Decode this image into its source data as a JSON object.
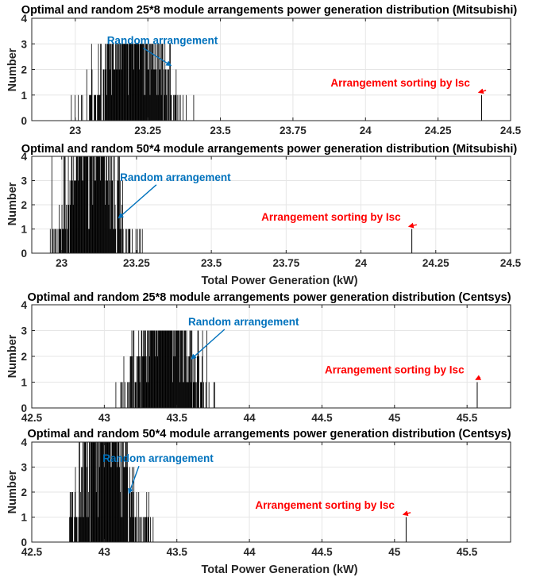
{
  "colors": {
    "bars": "#000000",
    "grid": "#e6e6e6",
    "axes": "#262626",
    "random_annotation": "#0072BD",
    "sorted_annotation": "#FF0000"
  },
  "chart_data": [
    {
      "type": "bar",
      "title": "Optimal and random 25*8 module arrangements power generation distribution (Mitsubishi)",
      "xlabel": "",
      "ylabel": "Number",
      "xlim": [
        22.85,
        24.5
      ],
      "ylim": [
        0,
        4
      ],
      "xticks": [
        23,
        23.25,
        23.5,
        23.75,
        24,
        24.25,
        24.5
      ],
      "xtick_labels": [
        "23",
        "23.25",
        "23.5",
        "23.75",
        "24",
        "24.25",
        "24.5"
      ],
      "yticks": [
        0,
        1,
        2,
        3,
        4
      ],
      "ytick_labels": [
        "0",
        "1",
        "2",
        "3",
        "4"
      ],
      "grid": true,
      "random_distribution": {
        "center": 23.2,
        "spread": 0.07,
        "range": [
          22.98,
          23.55
        ],
        "peak_count": 3
      },
      "sorted_arrangement": {
        "x": 24.4,
        "count": 1
      },
      "annotations": [
        {
          "text": "Random arrangement",
          "color": "blue",
          "label_at": [
            23.3,
            2.99
          ],
          "arrow_to": [
            23.33,
            2.15
          ]
        },
        {
          "text": "Arrangement sorting by Isc",
          "color": "red",
          "label_at": [
            24.12,
            1.34
          ],
          "arrow_to": [
            24.39,
            1.1
          ]
        }
      ]
    },
    {
      "type": "bar",
      "title": "Optimal and random 50*4 module arrangements power generation distribution (Mitsubishi)",
      "xlabel": "Total Power Generation (kW)",
      "ylabel": "Number",
      "xlim": [
        22.9,
        24.5
      ],
      "ylim": [
        0,
        4
      ],
      "xticks": [
        23,
        23.25,
        23.5,
        23.75,
        24,
        24.25,
        24.5
      ],
      "xtick_labels": [
        "23",
        "23.25",
        "23.5",
        "23.75",
        "24",
        "24.25",
        "24.5"
      ],
      "yticks": [
        0,
        1,
        2,
        3,
        4
      ],
      "ytick_labels": [
        "0",
        "1",
        "2",
        "3",
        "4"
      ],
      "grid": true,
      "random_distribution": {
        "center": 23.1,
        "spread": 0.06,
        "range": [
          22.95,
          23.27
        ],
        "peak_count": 4
      },
      "sorted_arrangement": {
        "x": 24.17,
        "count": 1
      },
      "annotations": [
        {
          "text": "Random arrangement",
          "color": "blue",
          "label_at": [
            23.38,
            2.99
          ],
          "arrow_to": [
            23.19,
            1.45
          ]
        },
        {
          "text": "Arrangement sorting by Isc",
          "color": "red",
          "label_at": [
            23.9,
            1.34
          ],
          "arrow_to": [
            24.16,
            1.1
          ]
        }
      ]
    },
    {
      "type": "bar",
      "title": "Optimal and random 25*8 module arrangements power generation distribution (Centsys)",
      "xlabel": "",
      "ylabel": "Number",
      "xlim": [
        42.5,
        45.8
      ],
      "ylim": [
        0,
        4
      ],
      "xticks": [
        42.5,
        43,
        43.5,
        44,
        44.5,
        45,
        45.5
      ],
      "xtick_labels": [
        "42.5",
        "43",
        "43.5",
        "44",
        "44.5",
        "45",
        "45.5"
      ],
      "yticks": [
        0,
        1,
        2,
        3,
        4
      ],
      "ytick_labels": [
        "0",
        "1",
        "2",
        "3",
        "4"
      ],
      "grid": true,
      "random_distribution": {
        "center": 43.42,
        "spread": 0.13,
        "range": [
          43.02,
          43.77
        ],
        "peak_count": 3
      },
      "sorted_arrangement": {
        "x": 45.57,
        "count": 1
      },
      "annotations": [
        {
          "text": "Random arrangement",
          "color": "blue",
          "label_at": [
            43.96,
            3.2
          ],
          "arrow_to": [
            43.6,
            1.9
          ]
        },
        {
          "text": "Arrangement sorting by Isc",
          "color": "red",
          "label_at": [
            45.0,
            1.34
          ],
          "arrow_to": [
            45.56,
            1.1
          ]
        }
      ]
    },
    {
      "type": "bar",
      "title": "Optimal and random 50*4 module arrangements power generation distribution (Centsys)",
      "xlabel": "Total Power Generation (kW)",
      "ylabel": "Number",
      "xlim": [
        42.5,
        45.8
      ],
      "ylim": [
        0,
        4
      ],
      "xticks": [
        42.5,
        43,
        43.5,
        44,
        44.5,
        45,
        45.5
      ],
      "xtick_labels": [
        "42.5",
        "43",
        "43.5",
        "44",
        "44.5",
        "45",
        "45.5"
      ],
      "yticks": [
        0,
        1,
        2,
        3,
        4
      ],
      "ytick_labels": [
        "0",
        "1",
        "2",
        "3",
        "4"
      ],
      "grid": true,
      "random_distribution": {
        "center": 43.0,
        "spread": 0.12,
        "range": [
          42.76,
          43.55
        ],
        "peak_count": 4
      },
      "sorted_arrangement": {
        "x": 45.08,
        "count": 1
      },
      "annotations": [
        {
          "text": "Random arrangement",
          "color": "blue",
          "label_at": [
            43.37,
            3.2
          ],
          "arrow_to": [
            43.17,
            1.95
          ]
        },
        {
          "text": "Arrangement sorting by Isc",
          "color": "red",
          "label_at": [
            44.52,
            1.34
          ],
          "arrow_to": [
            45.06,
            1.1
          ]
        }
      ]
    }
  ]
}
